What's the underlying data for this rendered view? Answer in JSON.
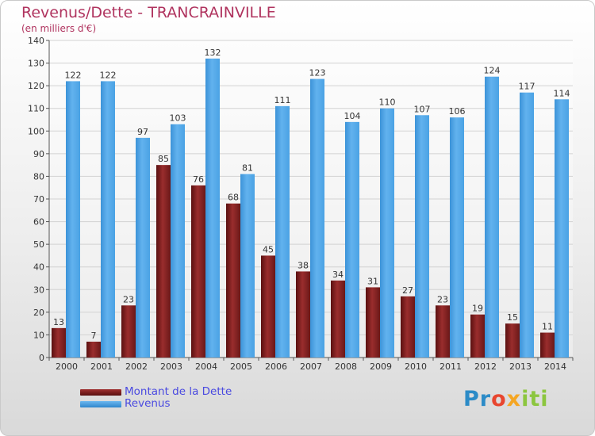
{
  "chart_data": {
    "type": "bar",
    "title": "Revenus/Dette - TRANCRAINVILLE",
    "subtitle": "(en milliers d'€)",
    "xlabel": "",
    "ylabel": "",
    "ylim": [
      0,
      140
    ],
    "yticks": [
      0,
      10,
      20,
      30,
      40,
      50,
      60,
      70,
      80,
      90,
      100,
      110,
      120,
      130,
      140
    ],
    "categories": [
      "2000",
      "2001",
      "2002",
      "2003",
      "2004",
      "2005",
      "2006",
      "2007",
      "2008",
      "2009",
      "2010",
      "2011",
      "2012",
      "2013",
      "2014"
    ],
    "series": [
      {
        "name": "Montant de la Dette",
        "color": "#7a1f1f",
        "values": [
          13,
          7,
          23,
          85,
          76,
          68,
          45,
          38,
          34,
          31,
          27,
          23,
          19,
          15,
          11
        ]
      },
      {
        "name": "Revenus",
        "color": "#4a9fe0",
        "values": [
          122,
          122,
          97,
          103,
          132,
          81,
          111,
          123,
          104,
          110,
          107,
          106,
          124,
          117,
          114
        ]
      }
    ],
    "legend_position": "bottom-left",
    "grid": true
  },
  "brand": {
    "text": "Proxiti"
  }
}
